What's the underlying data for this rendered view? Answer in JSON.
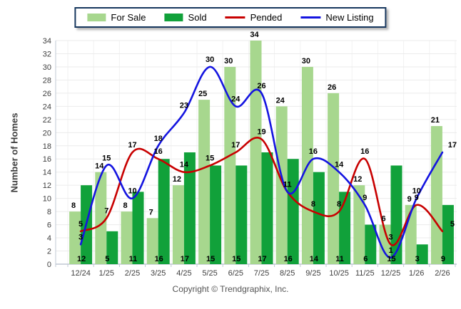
{
  "legend": {
    "items": [
      {
        "label": "For Sale",
        "marker": "swatch",
        "color": "#A7D78E"
      },
      {
        "label": "Sold",
        "marker": "swatch",
        "color": "#11A13A"
      },
      {
        "label": "Pended",
        "marker": "line",
        "color": "#C80000"
      },
      {
        "label": "New Listing",
        "marker": "line",
        "color": "#1414E0"
      }
    ]
  },
  "axes": {
    "y_label": "Number of Homes",
    "ylim": [
      0,
      34
    ],
    "y_tick_step": 2
  },
  "footer": {
    "copyright": "Copyright © Trendgraphix, Inc."
  },
  "chart_data": {
    "type": "bar",
    "title": "",
    "xlabel": "",
    "ylabel": "Number of Homes",
    "ylim": [
      0,
      34
    ],
    "y_tick_step": 2,
    "grid": true,
    "legend_position": "top-center",
    "categories": [
      "12/24",
      "1/25",
      "2/25",
      "3/25",
      "4/25",
      "5/25",
      "6/25",
      "7/25",
      "8/25",
      "9/25",
      "10/25",
      "11/25",
      "12/25",
      "1/26",
      "2/26"
    ],
    "series": [
      {
        "name": "For Sale",
        "type": "bar",
        "color": "#A7D78E",
        "values": [
          8,
          14,
          8,
          7,
          12,
          25,
          30,
          34,
          24,
          30,
          26,
          12,
          6,
          9,
          21
        ]
      },
      {
        "name": "Sold",
        "type": "bar",
        "color": "#11A13A",
        "values": [
          12,
          5,
          11,
          16,
          17,
          15,
          15,
          17,
          16,
          14,
          11,
          6,
          15,
          3,
          9
        ]
      },
      {
        "name": "Pended",
        "type": "line",
        "color": "#C80000",
        "values": [
          5,
          7,
          17,
          16,
          14,
          15,
          17,
          19,
          11,
          8,
          8,
          16,
          3,
          9,
          5
        ]
      },
      {
        "name": "New Listing",
        "type": "line",
        "color": "#1414E0",
        "values": [
          3,
          15,
          10,
          18,
          23,
          30,
          24,
          26,
          11,
          16,
          14,
          9,
          1,
          10,
          17
        ]
      }
    ]
  },
  "colors": {
    "grid_h": "#EBEBEB",
    "grid_v": "#F2F2F2",
    "axis": "#C0C8D4",
    "tick_text": "#404040",
    "data_label": "#000000"
  }
}
